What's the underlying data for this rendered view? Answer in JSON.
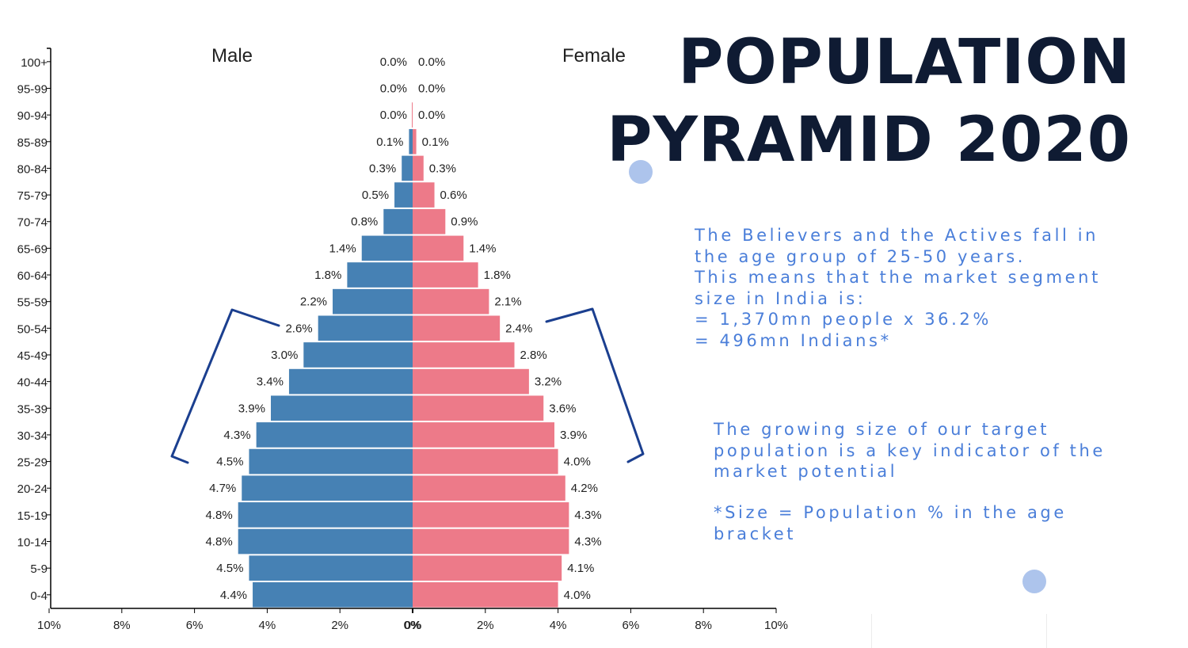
{
  "title": {
    "line1": "POPULATION",
    "line2": "PYRAMID 2020"
  },
  "notes": {
    "paragraph1": [
      "The Believers and the Actives fall in",
      "the age group of 25-50 years.",
      "This means that the market segment",
      "size in India is:",
      "= 1,370mn people x 36.2%",
      "= 496mn Indians*"
    ],
    "paragraph2": [
      "The growing size of our target",
      "population is a key indicator of the",
      "market potential"
    ],
    "paragraph3": [
      "*Size = Population % in the age",
      "bracket"
    ]
  },
  "chart_data": {
    "type": "bar",
    "orientation": "horizontal-diverging",
    "categories": [
      "100+",
      "95-99",
      "90-94",
      "85-89",
      "80-84",
      "75-79",
      "70-74",
      "65-69",
      "60-64",
      "55-59",
      "50-54",
      "45-49",
      "40-44",
      "35-39",
      "30-34",
      "25-29",
      "20-24",
      "15-19",
      "10-14",
      "5-9",
      "0-4"
    ],
    "series": [
      {
        "name": "Male",
        "color": "#4681b4",
        "values": [
          0.0,
          0.0,
          0.0,
          0.1,
          0.3,
          0.5,
          0.8,
          1.4,
          1.8,
          2.2,
          2.6,
          3.0,
          3.4,
          3.9,
          4.3,
          4.5,
          4.7,
          4.8,
          4.8,
          4.5,
          4.4
        ],
        "labels": [
          "0.0%",
          "0.0%",
          "0.0%",
          "0.1%",
          "0.3%",
          "0.5%",
          "0.8%",
          "1.4%",
          "1.8%",
          "2.2%",
          "2.6%",
          "3.0%",
          "3.4%",
          "3.9%",
          "4.3%",
          "4.5%",
          "4.7%",
          "4.8%",
          "4.8%",
          "4.5%",
          "4.4%"
        ]
      },
      {
        "name": "Female",
        "color": "#ed7a89",
        "values": [
          0.0,
          0.0,
          0.0,
          0.1,
          0.3,
          0.6,
          0.9,
          1.4,
          1.8,
          2.1,
          2.4,
          2.8,
          3.2,
          3.6,
          3.9,
          4.0,
          4.2,
          4.3,
          4.3,
          4.1,
          4.0
        ],
        "labels": [
          "0.0%",
          "0.0%",
          "0.0%",
          "0.1%",
          "0.3%",
          "0.6%",
          "0.9%",
          "1.4%",
          "1.8%",
          "2.1%",
          "2.4%",
          "2.8%",
          "3.2%",
          "3.6%",
          "3.9%",
          "4.0%",
          "4.2%",
          "4.3%",
          "4.3%",
          "4.1%",
          "4.0%"
        ]
      }
    ],
    "x_ticks": [
      "10%",
      "8%",
      "6%",
      "4%",
      "2%",
      "0%",
      "0%",
      "2%",
      "4%",
      "6%",
      "8%",
      "10%"
    ],
    "xlim": [
      -10,
      10
    ],
    "highlight_bracket": {
      "from": "50-54",
      "to": "25-29",
      "color": "#1b3f8f"
    }
  }
}
